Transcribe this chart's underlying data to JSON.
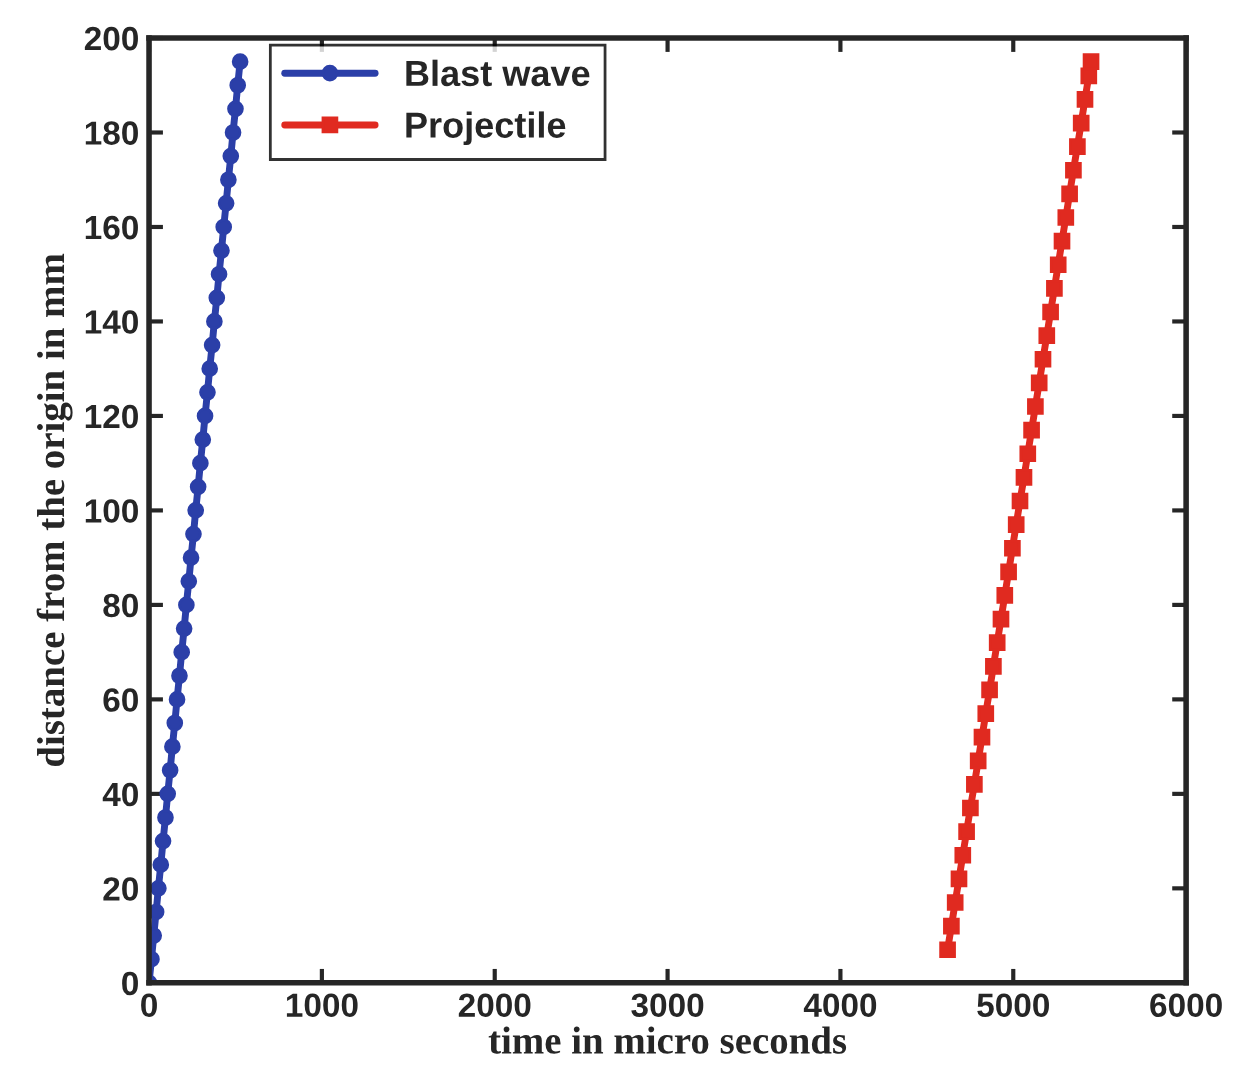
{
  "chart_data": {
    "type": "line",
    "xlabel": "time in micro seconds",
    "ylabel": "distance from the origin in mm",
    "xlim": [
      0,
      6000
    ],
    "xticks": [
      0,
      1000,
      2000,
      3000,
      4000,
      5000,
      6000
    ],
    "ylim": [
      0,
      200
    ],
    "yticks": [
      0,
      20,
      40,
      60,
      80,
      100,
      120,
      140,
      160,
      180,
      200
    ],
    "grid": false,
    "legend": "top left",
    "line_style": "solid",
    "series": [
      {
        "name": "Blast wave",
        "color": "#2b3fa8",
        "marker": "circle",
        "x": [
          0,
          14,
          27,
          41,
          54,
          68,
          81,
          95,
          108,
          122,
          135,
          149,
          162,
          176,
          189,
          203,
          216,
          230,
          243,
          257,
          270,
          284,
          297,
          311,
          324,
          338,
          351,
          365,
          378,
          392,
          405,
          419,
          432,
          446,
          459,
          473,
          486,
          500,
          513,
          527
        ],
        "values": [
          0,
          5,
          10,
          15,
          20,
          25,
          30,
          35,
          40,
          45,
          50,
          55,
          60,
          65,
          70,
          75,
          80,
          85,
          90,
          95,
          100,
          105,
          110,
          115,
          120,
          125,
          130,
          135,
          140,
          145,
          150,
          155,
          160,
          165,
          170,
          175,
          180,
          185,
          190,
          195
        ]
      },
      {
        "name": "Projectile",
        "color": "#e02a20",
        "marker": "square",
        "x": [
          4620,
          4642,
          4664,
          4686,
          4708,
          4730,
          4752,
          4775,
          4797,
          4819,
          4841,
          4863,
          4885,
          4907,
          4929,
          4951,
          4973,
          4995,
          5017,
          5039,
          5062,
          5084,
          5106,
          5128,
          5150,
          5172,
          5194,
          5216,
          5238,
          5260,
          5282,
          5304,
          5326,
          5348,
          5371,
          5393,
          5415,
          5437,
          5450
        ],
        "values": [
          7,
          12,
          17,
          22,
          27,
          32,
          37,
          42,
          47,
          52,
          57,
          62,
          67,
          72,
          77,
          82,
          87,
          92,
          97,
          102,
          107,
          112,
          117,
          122,
          127,
          132,
          137,
          142,
          147,
          152,
          157,
          162,
          167,
          172,
          177,
          182,
          187,
          192,
          195
        ]
      }
    ]
  }
}
